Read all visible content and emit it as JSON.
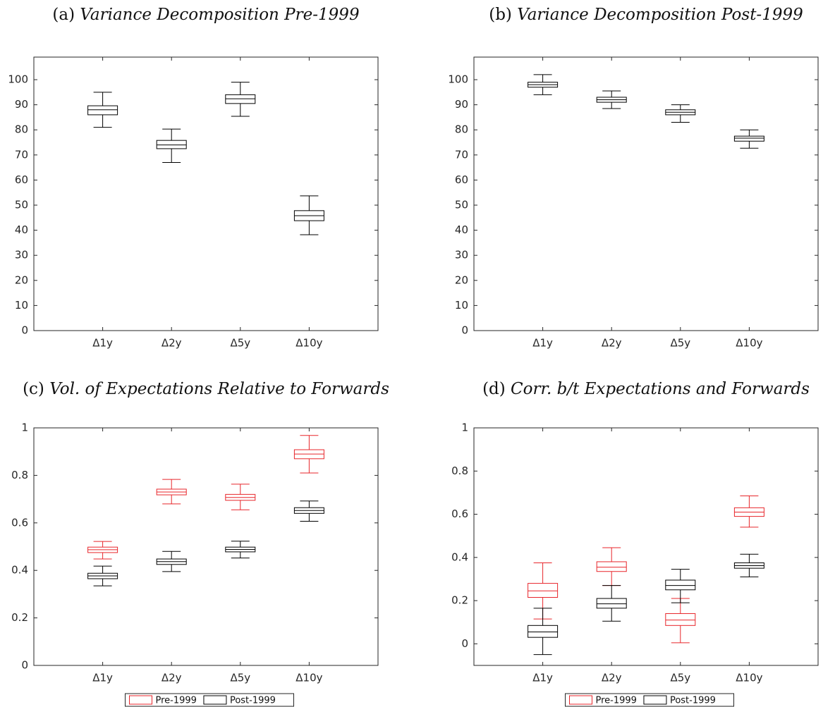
{
  "chart_data": [
    {
      "type": "box",
      "panel_label": "(a)",
      "title": "Variance Decomposition Pre-1999",
      "categories": [
        "Δ1y",
        "Δ2y",
        "Δ5y",
        "Δ10y"
      ],
      "ylim": [
        0,
        109
      ],
      "yticks": [
        0,
        10,
        20,
        30,
        40,
        50,
        60,
        70,
        80,
        90,
        100
      ],
      "series": [
        {
          "color": "#000000",
          "values": [
            {
              "low": 81,
              "q1": 86,
              "median": 88,
              "q3": 89.6,
              "high": 95
            },
            {
              "low": 67,
              "q1": 72.5,
              "median": 74,
              "q3": 75.8,
              "high": 80.3
            },
            {
              "low": 85.4,
              "q1": 90.5,
              "median": 92.4,
              "q3": 94,
              "high": 99
            },
            {
              "low": 38.2,
              "q1": 43.8,
              "median": 45.8,
              "q3": 47.8,
              "high": 53.7
            }
          ]
        }
      ]
    },
    {
      "type": "box",
      "panel_label": "(b)",
      "title": "Variance Decomposition Post-1999",
      "categories": [
        "Δ1y",
        "Δ2y",
        "Δ5y",
        "Δ10y"
      ],
      "ylim": [
        0,
        109
      ],
      "yticks": [
        0,
        10,
        20,
        30,
        40,
        50,
        60,
        70,
        80,
        90,
        100
      ],
      "series": [
        {
          "color": "#000000",
          "values": [
            {
              "low": 94,
              "q1": 97,
              "median": 98,
              "q3": 99,
              "high": 102
            },
            {
              "low": 88.5,
              "q1": 91,
              "median": 92,
              "q3": 93,
              "high": 95.5
            },
            {
              "low": 83,
              "q1": 86,
              "median": 87,
              "q3": 88,
              "high": 90
            },
            {
              "low": 72.7,
              "q1": 75.5,
              "median": 76.7,
              "q3": 77.5,
              "high": 80
            }
          ]
        }
      ]
    },
    {
      "type": "box",
      "panel_label": "(c)",
      "title": "Vol. of Expectations Relative to Forwards",
      "categories": [
        "Δ1y",
        "Δ2y",
        "Δ5y",
        "Δ10y"
      ],
      "ylim": [
        0,
        1
      ],
      "yticks": [
        0,
        0.2,
        0.4,
        0.6,
        0.8,
        1
      ],
      "legend": "bottom-outside",
      "series": [
        {
          "name": "Pre-1999",
          "color": "#e8262b",
          "values": [
            {
              "low": 0.448,
              "q1": 0.475,
              "median": 0.487,
              "q3": 0.498,
              "high": 0.522
            },
            {
              "low": 0.68,
              "q1": 0.718,
              "median": 0.73,
              "q3": 0.742,
              "high": 0.783
            },
            {
              "low": 0.655,
              "q1": 0.695,
              "median": 0.707,
              "q3": 0.72,
              "high": 0.763
            },
            {
              "low": 0.81,
              "q1": 0.87,
              "median": 0.89,
              "q3": 0.908,
              "high": 0.968
            }
          ]
        },
        {
          "name": "Post-1999",
          "color": "#000000",
          "values": [
            {
              "low": 0.335,
              "q1": 0.365,
              "median": 0.377,
              "q3": 0.388,
              "high": 0.418
            },
            {
              "low": 0.395,
              "q1": 0.425,
              "median": 0.437,
              "q3": 0.448,
              "high": 0.48
            },
            {
              "low": 0.452,
              "q1": 0.478,
              "median": 0.488,
              "q3": 0.498,
              "high": 0.523
            },
            {
              "low": 0.607,
              "q1": 0.64,
              "median": 0.652,
              "q3": 0.664,
              "high": 0.692
            }
          ]
        }
      ]
    },
    {
      "type": "box",
      "panel_label": "(d)",
      "title": "Corr. b/t Expectations and Forwards",
      "categories": [
        "Δ1y",
        "Δ2y",
        "Δ5y",
        "Δ10y"
      ],
      "ylim": [
        -0.1,
        1
      ],
      "yticks": [
        0,
        0.2,
        0.4,
        0.6,
        0.8,
        1
      ],
      "legend": "bottom-outside",
      "series": [
        {
          "name": "Pre-1999",
          "color": "#e8262b",
          "values": [
            {
              "low": 0.115,
              "q1": 0.215,
              "median": 0.245,
              "q3": 0.28,
              "high": 0.375
            },
            {
              "low": 0.27,
              "q1": 0.335,
              "median": 0.355,
              "q3": 0.38,
              "high": 0.445
            },
            {
              "low": 0.005,
              "q1": 0.085,
              "median": 0.11,
              "q3": 0.14,
              "high": 0.21
            },
            {
              "low": 0.54,
              "q1": 0.59,
              "median": 0.61,
              "q3": 0.63,
              "high": 0.685
            }
          ]
        },
        {
          "name": "Post-1999",
          "color": "#000000",
          "values": [
            {
              "low": -0.05,
              "q1": 0.03,
              "median": 0.055,
              "q3": 0.085,
              "high": 0.165
            },
            {
              "low": 0.105,
              "q1": 0.165,
              "median": 0.185,
              "q3": 0.21,
              "high": 0.27
            },
            {
              "low": 0.19,
              "q1": 0.25,
              "median": 0.27,
              "q3": 0.295,
              "high": 0.345
            },
            {
              "low": 0.31,
              "q1": 0.35,
              "median": 0.362,
              "q3": 0.375,
              "high": 0.415
            }
          ]
        }
      ]
    }
  ]
}
